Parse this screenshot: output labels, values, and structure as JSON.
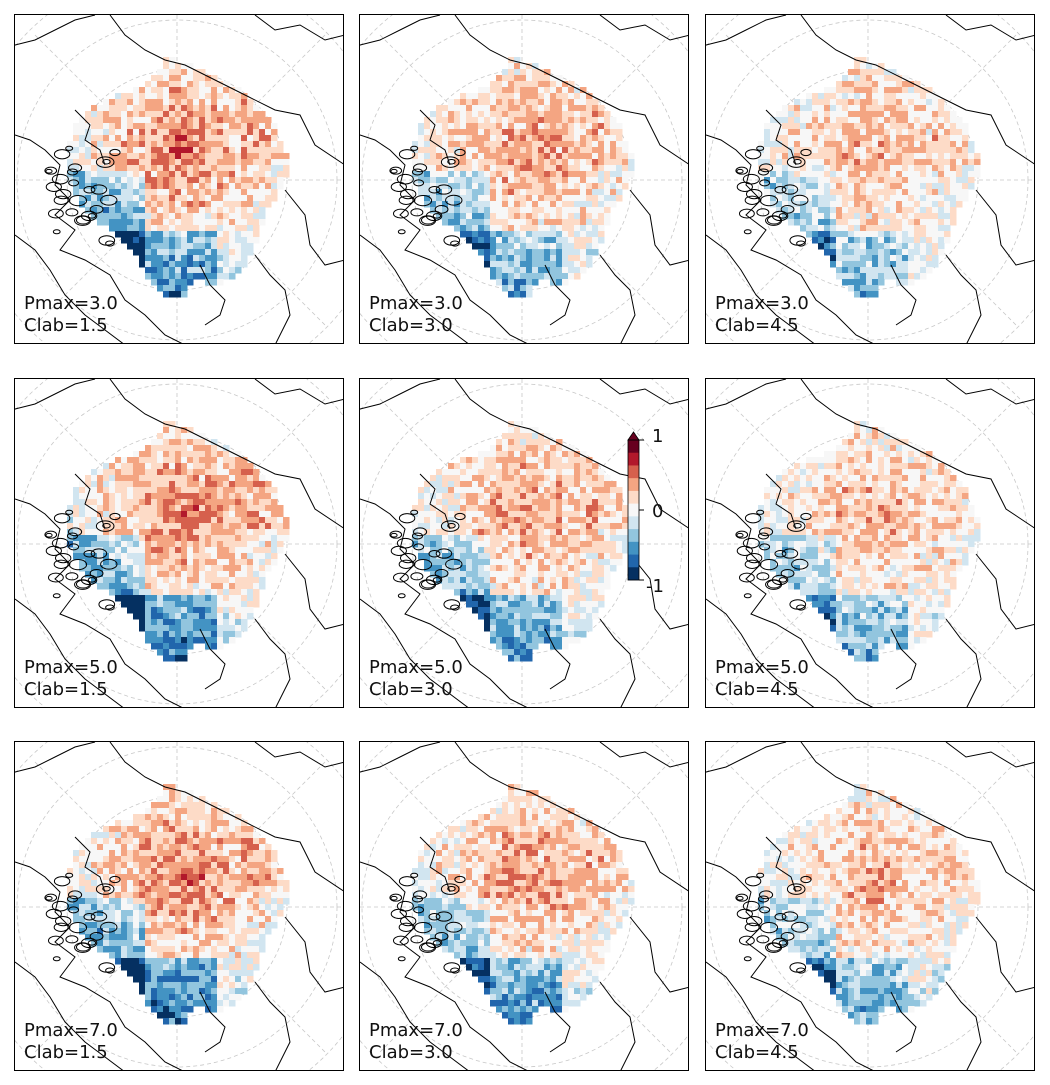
{
  "panels": [
    {
      "row": 0,
      "col": 0,
      "pmax": "Pmax=3.0",
      "clab": "Clab=1.5",
      "variant": 0
    },
    {
      "row": 0,
      "col": 1,
      "pmax": "Pmax=3.0",
      "clab": "Clab=3.0",
      "variant": 1
    },
    {
      "row": 0,
      "col": 2,
      "pmax": "Pmax=3.0",
      "clab": "Clab=4.5",
      "variant": 2
    },
    {
      "row": 1,
      "col": 0,
      "pmax": "Pmax=5.0",
      "clab": "Clab=1.5",
      "variant": 3
    },
    {
      "row": 1,
      "col": 1,
      "pmax": "Pmax=5.0",
      "clab": "Clab=3.0",
      "variant": 4
    },
    {
      "row": 1,
      "col": 2,
      "pmax": "Pmax=5.0",
      "clab": "Clab=4.5",
      "variant": 5
    },
    {
      "row": 2,
      "col": 0,
      "pmax": "Pmax=7.0",
      "clab": "Clab=1.5",
      "variant": 6
    },
    {
      "row": 2,
      "col": 1,
      "pmax": "Pmax=7.0",
      "clab": "Clab=3.0",
      "variant": 7
    },
    {
      "row": 2,
      "col": 2,
      "pmax": "Pmax=7.0",
      "clab": "Clab=4.5",
      "variant": 8
    }
  ],
  "colorbar": {
    "ticks": [
      "1",
      "0",
      "-1"
    ],
    "colors": [
      "#053061",
      "#2166ac",
      "#4393c3",
      "#92c5de",
      "#d1e5f0",
      "#f7f7f7",
      "#fddbc7",
      "#f4a582",
      "#d6604d",
      "#b2182b",
      "#67001f"
    ]
  },
  "palette": {
    "ocean": "#ffffff",
    "coast": "#000000",
    "grid": "#c8c8c8"
  }
}
